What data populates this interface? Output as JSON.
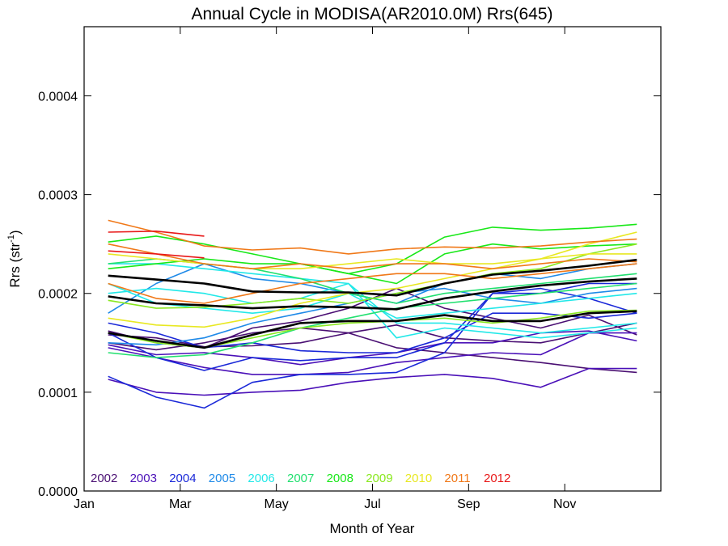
{
  "chart_data": {
    "type": "line",
    "title": "Annual Cycle in MODISA(AR2010.0M) Rrs(645)",
    "xlabel": "Month of Year",
    "ylabel_main": "Rrs (str",
    "ylabel_sup": "-1",
    "ylabel_end": ")",
    "xlim": [
      1,
      13
    ],
    "ylim": [
      0,
      0.00047
    ],
    "x_ticks": [
      {
        "value": 1,
        "label": "Jan"
      },
      {
        "value": 3,
        "label": "Mar"
      },
      {
        "value": 5,
        "label": "May"
      },
      {
        "value": 7,
        "label": "Jul"
      },
      {
        "value": 9,
        "label": "Sep"
      },
      {
        "value": 11,
        "label": "Nov"
      }
    ],
    "y_ticks": [
      {
        "value": 0,
        "label": "0.0000"
      },
      {
        "value": 0.0001,
        "label": "0.0001"
      },
      {
        "value": 0.0002,
        "label": "0.0002"
      },
      {
        "value": 0.0003,
        "label": "0.0003"
      },
      {
        "value": 0.0004,
        "label": "0.0004"
      }
    ],
    "legend_position": "bottom-left",
    "grid": false,
    "months": [
      1.5,
      2.5,
      3.5,
      4.5,
      5.5,
      6.5,
      7.5,
      8.5,
      9.5,
      10.5,
      11.5,
      12.5
    ],
    "series": [
      {
        "name": "2002",
        "color": "#4a0f73",
        "lines": [
          [
            0.000158,
            0.000155,
            0.000146,
            0.000147,
            0.00015,
            0.00016,
            0.000168,
            0.000155,
            0.000152,
            0.00015,
            0.00016,
            0.00017
          ],
          [
            0.000162,
            0.00015,
            0.000145,
            0.000165,
            0.000172,
            0.000185,
            0.000205,
            0.000185,
            0.000175,
            0.000165,
            0.000178,
            0.000158
          ],
          [
            0.00015,
            0.000143,
            0.00015,
            0.00016,
            0.000165,
            0.00016,
            0.000145,
            0.00014,
            0.000135,
            0.00013,
            0.000124,
            0.00012
          ]
        ]
      },
      {
        "name": "2003",
        "color": "#4a10b8",
        "lines": [
          [
            0.000113,
            0.0001,
            9.7e-05,
            0.0001,
            0.000102,
            0.00011,
            0.000115,
            0.000118,
            0.000114,
            0.000105,
            0.000124,
            0.000124
          ],
          [
            0.000145,
            0.000135,
            0.000125,
            0.000118,
            0.000118,
            0.00012,
            0.00013,
            0.000135,
            0.00014,
            0.000138,
            0.00016,
            0.00016
          ],
          [
            0.000148,
            0.000138,
            0.00014,
            0.000135,
            0.000128,
            0.000135,
            0.00014,
            0.00015,
            0.00015,
            0.00016,
            0.000162,
            0.000152
          ]
        ]
      },
      {
        "name": "2004",
        "color": "#1a28d8",
        "lines": [
          [
            0.000116,
            9.5e-05,
            8.4e-05,
            0.00011,
            0.000118,
            0.000118,
            0.00012,
            0.00014,
            0.0002,
            0.000205,
            0.000195,
            0.00018
          ],
          [
            0.00016,
            0.000135,
            0.000122,
            0.000135,
            0.000132,
            0.000135,
            0.000135,
            0.00015,
            0.0002,
            0.0002,
            0.00021,
            0.00021
          ],
          [
            0.00017,
            0.00016,
            0.000145,
            0.00015,
            0.000142,
            0.00014,
            0.00014,
            0.000155,
            0.00018,
            0.00018,
            0.000175,
            0.00018
          ]
        ]
      },
      {
        "name": "2005",
        "color": "#1f8ae8",
        "lines": [
          [
            0.00018,
            0.00021,
            0.00023,
            0.000215,
            0.00021,
            0.0002,
            0.00019,
            0.00021,
            0.00022,
            0.000215,
            0.000225,
            0.00023
          ],
          [
            0.00015,
            0.000148,
            0.000155,
            0.00017,
            0.00018,
            0.00019,
            0.0002,
            0.000205,
            0.000195,
            0.00019,
            0.0002,
            0.000205
          ]
        ]
      },
      {
        "name": "2006",
        "color": "#22e8e8",
        "lines": [
          [
            0.00023,
            0.00023,
            0.000225,
            0.00022,
            0.000215,
            0.00021,
            0.00017,
            0.00017,
            0.000165,
            0.00016,
            0.000165,
            0.00017
          ],
          [
            0.0002,
            0.000205,
            0.0002,
            0.00019,
            0.000195,
            0.00021,
            0.000155,
            0.000165,
            0.00016,
            0.000155,
            0.00016,
            0.000165
          ],
          [
            0.00021,
            0.00019,
            0.000185,
            0.00018,
            0.000185,
            0.0002,
            0.000175,
            0.00018,
            0.000185,
            0.00019,
            0.000195,
            0.0002
          ]
        ]
      },
      {
        "name": "2007",
        "color": "#22e070",
        "lines": [
          [
            0.00023,
            0.000235,
            0.00023,
            0.000225,
            0.000215,
            0.0002,
            0.00019,
            0.0002,
            0.000205,
            0.00021,
            0.000215,
            0.00022
          ],
          [
            0.00014,
            0.000135,
            0.000138,
            0.00015,
            0.000165,
            0.000175,
            0.000185,
            0.00019,
            0.000195,
            0.0002,
            0.000205,
            0.00021
          ]
        ]
      },
      {
        "name": "2008",
        "color": "#18e818",
        "lines": [
          [
            0.000252,
            0.000258,
            0.00025,
            0.00024,
            0.00023,
            0.00022,
            0.00023,
            0.000257,
            0.000267,
            0.000264,
            0.000266,
            0.00027
          ],
          [
            0.000225,
            0.00023,
            0.000235,
            0.00023,
            0.00023,
            0.00022,
            0.00021,
            0.00024,
            0.00025,
            0.000245,
            0.000248,
            0.00025
          ]
        ]
      },
      {
        "name": "2009",
        "color": "#8ae820",
        "lines": [
          [
            0.000193,
            0.000185,
            0.000186,
            0.00019,
            0.000195,
            0.00019,
            0.0002,
            0.00021,
            0.00022,
            0.000225,
            0.00024,
            0.00025
          ],
          [
            0.00016,
            0.00015,
            0.000145,
            0.000155,
            0.000165,
            0.00017,
            0.000172,
            0.000175,
            0.00017,
            0.000175,
            0.000182,
            0.000183
          ]
        ]
      },
      {
        "name": "2010",
        "color": "#e8e822",
        "lines": [
          [
            0.000175,
            0.000168,
            0.000166,
            0.000175,
            0.00019,
            0.0002,
            0.000205,
            0.000215,
            0.000225,
            0.000235,
            0.00025,
            0.000262
          ],
          [
            0.00024,
            0.000235,
            0.00023,
            0.000225,
            0.000225,
            0.00023,
            0.000235,
            0.00023,
            0.00023,
            0.000235,
            0.00024,
            0.00024
          ]
        ]
      },
      {
        "name": "2011",
        "color": "#f07818",
        "lines": [
          [
            0.000274,
            0.000262,
            0.000248,
            0.000244,
            0.000246,
            0.00024,
            0.000245,
            0.000247,
            0.000246,
            0.000248,
            0.000252,
            0.000255
          ],
          [
            0.00025,
            0.00024,
            0.00023,
            0.000225,
            0.00023,
            0.000225,
            0.00023,
            0.00023,
            0.000225,
            0.00023,
            0.000235,
            0.000232
          ],
          [
            0.00021,
            0.000195,
            0.00019,
            0.0002,
            0.00021,
            0.000215,
            0.00022,
            0.00022,
            0.000215,
            0.00022,
            0.000225,
            0.00023
          ]
        ]
      },
      {
        "name": "2012",
        "color": "#e81818",
        "lines": [
          [
            0.000262,
            0.000263,
            0.000258,
            null,
            null,
            null,
            null,
            null,
            null,
            null,
            null,
            null
          ],
          [
            0.000243,
            0.00024,
            0.000236,
            null,
            null,
            null,
            null,
            null,
            null,
            null,
            null,
            null
          ]
        ]
      }
    ],
    "mean_lines": {
      "color": "#000000",
      "lines": [
        [
          0.000218,
          0.000214,
          0.00021,
          0.000202,
          0.000201,
          0.000201,
          0.000198,
          0.00021,
          0.000219,
          0.000223,
          0.000228,
          0.000234
        ],
        [
          0.000197,
          0.00019,
          0.000188,
          0.000185,
          0.000187,
          0.000186,
          0.000184,
          0.000195,
          0.000202,
          0.000208,
          0.000212,
          0.000215
        ],
        [
          0.00016,
          0.000152,
          0.000145,
          0.000158,
          0.00017,
          0.000172,
          0.000172,
          0.000178,
          0.000172,
          0.000172,
          0.00018,
          0.000182
        ]
      ]
    }
  }
}
